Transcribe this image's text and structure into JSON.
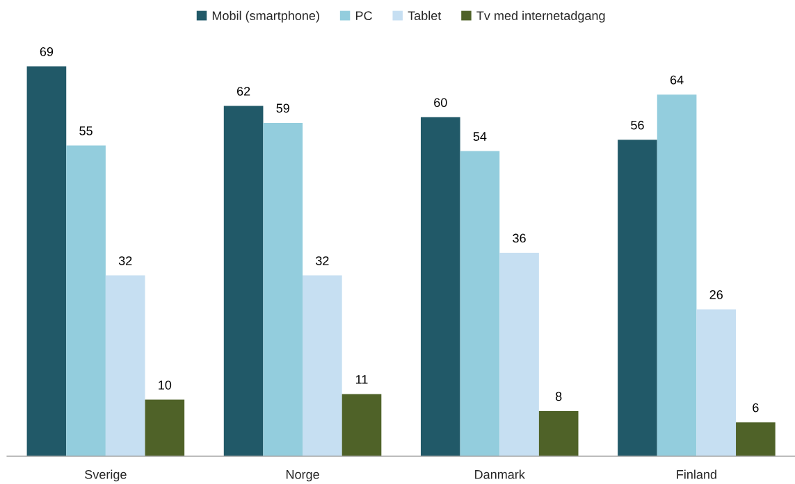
{
  "chart_data": {
    "type": "bar",
    "categories": [
      "Sverige",
      "Norge",
      "Danmark",
      "Finland"
    ],
    "series": [
      {
        "name": "Mobil (smartphone)",
        "color": "#215968",
        "values": [
          69,
          62,
          60,
          56
        ]
      },
      {
        "name": "PC",
        "color": "#93cddd",
        "values": [
          55,
          59,
          54,
          64
        ]
      },
      {
        "name": "Tablet",
        "color": "#c6dff2",
        "values": [
          32,
          32,
          36,
          26
        ]
      },
      {
        "name": "Tv med internetadgang",
        "color": "#4f6228",
        "values": [
          10,
          11,
          8,
          6
        ]
      }
    ],
    "data_labels": true,
    "legend": "top",
    "tick_labels": "x"
  }
}
